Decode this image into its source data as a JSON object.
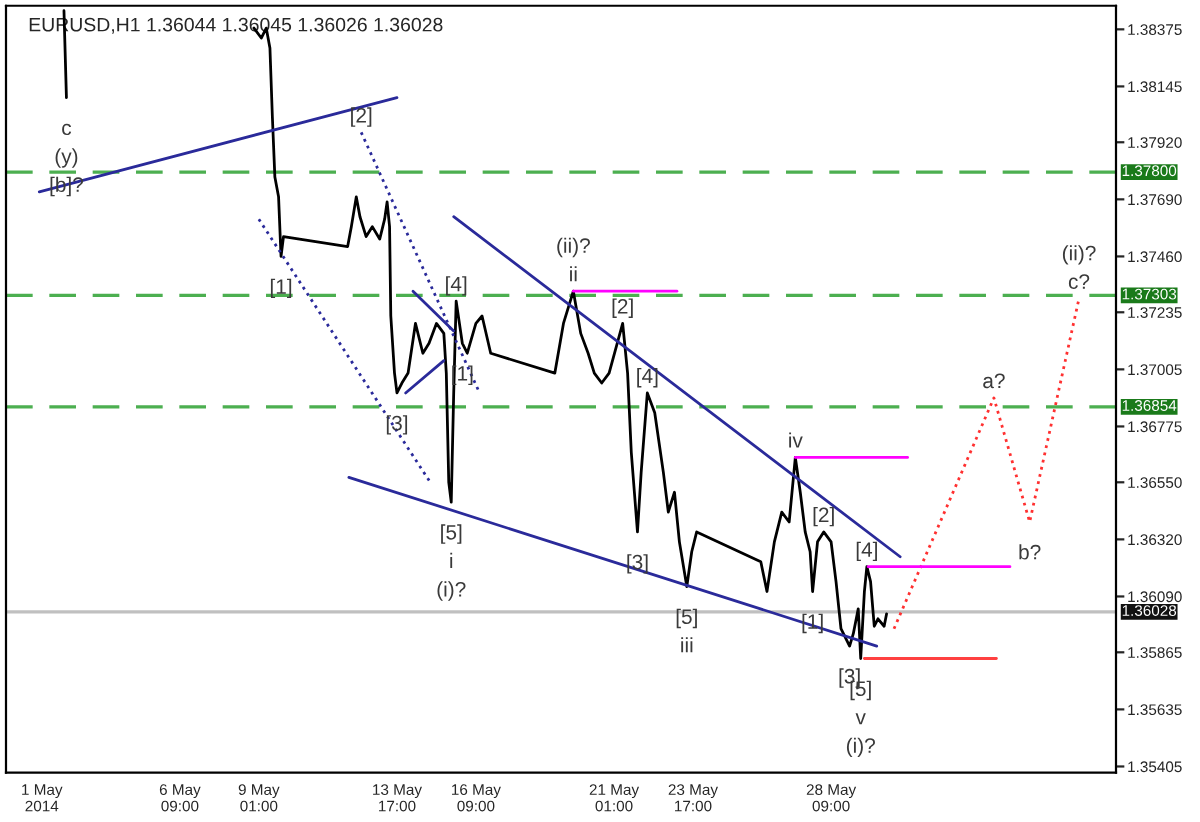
{
  "chart_data": {
    "type": "line",
    "title": "EURUSD,H1 1.36044 1.36045 1.36026 1.36028",
    "xlim": [
      "2014-04-30T12:00",
      "2014-06-07T00:00"
    ],
    "ylim": [
      1.3538,
      1.3847
    ],
    "xticks": [
      {
        "value": "2014-05-01T17:00",
        "label": "1 May 2014"
      },
      {
        "value": "2014-05-06T09:00",
        "label": "6 May 09:00"
      },
      {
        "value": "2014-05-09T01:00",
        "label": "9 May 01:00"
      },
      {
        "value": "2014-05-13T17:00",
        "label": "13 May 17:00"
      },
      {
        "value": "2014-05-16T09:00",
        "label": "16 May 09:00"
      },
      {
        "value": "2014-05-21T01:00",
        "label": "21 May 01:00"
      },
      {
        "value": "2014-05-23T17:00",
        "label": "23 May 17:00"
      },
      {
        "value": "2014-05-28T09:00",
        "label": "28 May 09:00"
      }
    ],
    "yticks": [
      {
        "value": 1.38375,
        "label": "1.38375"
      },
      {
        "value": 1.38145,
        "label": "1.38145"
      },
      {
        "value": 1.3792,
        "label": "1.37920"
      },
      {
        "value": 1.3769,
        "label": "1.37690"
      },
      {
        "value": 1.3746,
        "label": "1.37460"
      },
      {
        "value": 1.37235,
        "label": "1.37235"
      },
      {
        "value": 1.37005,
        "label": "1.37005"
      },
      {
        "value": 1.36775,
        "label": "1.36775"
      },
      {
        "value": 1.3655,
        "label": "1.36550"
      },
      {
        "value": 1.3632,
        "label": "1.36320"
      },
      {
        "value": 1.3609,
        "label": "1.36090"
      },
      {
        "value": 1.35865,
        "label": "1.35865"
      },
      {
        "value": 1.35635,
        "label": "1.35635"
      },
      {
        "value": 1.35405,
        "label": "1.35405"
      }
    ],
    "series": [
      {
        "color": "#000000",
        "line_style": "solid",
        "x": [
          "2014-05-02T11:00",
          "2014-05-02T13:00",
          "2014-05-06T17:00",
          "2014-05-08T21:00",
          "2014-05-09T03:00",
          "2014-05-09T07:00",
          "2014-05-09T10:00",
          "2014-05-09T12:00",
          "2014-05-09T14:00",
          "2014-05-09T17:00",
          "2014-05-09T19:00",
          "2014-05-09T21:00",
          "2014-05-12T01:00",
          "2014-05-12T04:00",
          "2014-05-12T08:00",
          "2014-05-12T11:00",
          "2014-05-12T16:00",
          "2014-05-12T21:00",
          "2014-05-13T03:00",
          "2014-05-13T07:00",
          "2014-05-13T09:00",
          "2014-05-13T11:00",
          "2014-05-13T12:00",
          "2014-05-13T15:00",
          "2014-05-13T17:00",
          "2014-05-13T21:00",
          "2014-05-14T02:00",
          "2014-05-14T08:00",
          "2014-05-14T14:00",
          "2014-05-14T19:00",
          "2014-05-15T01:00",
          "2014-05-15T07:00",
          "2014-05-15T09:00",
          "2014-05-15T11:00",
          "2014-05-15T13:00",
          "2014-05-15T15:00",
          "2014-05-15T17:00",
          "2014-05-15T22:00",
          "2014-05-16T02:00",
          "2014-05-16T09:00",
          "2014-05-16T14:00",
          "2014-05-16T21:00",
          "2014-05-19T01:00",
          "2014-05-19T08:00",
          "2014-05-19T16:00",
          "2014-05-19T22:00",
          "2014-05-20T04:00",
          "2014-05-20T09:00",
          "2014-05-20T15:00",
          "2014-05-20T21:00",
          "2014-05-21T08:00",
          "2014-05-21T12:00",
          "2014-05-21T15:00",
          "2014-05-21T20:00",
          "2014-05-21T23:00",
          "2014-05-22T04:00",
          "2014-05-22T10:00",
          "2014-05-22T17:00",
          "2014-05-22T21:00",
          "2014-05-23T02:00",
          "2014-05-23T06:00",
          "2014-05-23T12:00",
          "2014-05-23T16:00",
          "2014-05-23T20:00",
          "2014-05-26T00:00",
          "2014-05-26T05:00",
          "2014-05-26T11:00",
          "2014-05-26T17:00",
          "2014-05-26T23:00",
          "2014-05-27T04:00",
          "2014-05-27T08:00",
          "2014-05-27T12:00",
          "2014-05-27T16:00",
          "2014-05-27T18:00",
          "2014-05-27T22:00",
          "2014-05-28T03:00",
          "2014-05-28T09:00",
          "2014-05-28T13:00",
          "2014-05-28T17:00",
          "2014-05-28T21:00",
          "2014-05-29T00:00",
          "2014-05-29T03:00",
          "2014-05-29T07:00",
          "2014-05-29T09:00",
          "2014-05-29T12:00",
          "2014-05-29T14:00",
          "2014-05-29T17:00",
          "2014-05-29T20:00",
          "2014-05-29T23:00",
          "2014-05-30T04:00",
          "2014-05-30T06:00"
        ],
        "values": [
          1.3845,
          1.381,
          null,
          1.3838,
          1.3834,
          1.3838,
          1.383,
          1.3802,
          1.3778,
          1.377,
          1.3746,
          1.3754,
          1.375,
          1.3758,
          1.377,
          1.3762,
          1.3754,
          1.3758,
          1.3753,
          1.3761,
          1.3768,
          1.3758,
          1.3722,
          1.3699,
          1.3691,
          1.3695,
          1.3699,
          1.3719,
          1.3707,
          1.3711,
          1.3719,
          1.3715,
          1.3699,
          1.3655,
          1.3647,
          1.3691,
          1.3728,
          1.3711,
          1.3707,
          1.3719,
          1.3722,
          1.3707,
          1.3699,
          1.3719,
          1.3732,
          1.3715,
          1.3707,
          1.3699,
          1.3695,
          1.3699,
          1.3719,
          1.3699,
          1.3667,
          1.3635,
          1.3659,
          1.3691,
          1.3683,
          1.3659,
          1.3643,
          1.3651,
          1.3631,
          1.3613,
          1.3627,
          1.3635,
          1.3623,
          1.3611,
          1.3631,
          1.3643,
          1.3639,
          1.3665,
          1.3651,
          1.3635,
          1.3627,
          1.3611,
          1.3631,
          1.3635,
          1.3631,
          1.3615,
          1.3596,
          1.3592,
          1.3589,
          1.3594,
          1.3604,
          1.3584,
          1.3611,
          1.3621,
          1.3615,
          1.3597,
          1.36,
          1.3597,
          1.3602
        ]
      },
      {
        "color": "#ff3030",
        "line_style": "dotted",
        "x": [
          "2014-05-30T12:00",
          "2014-06-02T21:00",
          "2014-06-04T02:00",
          "2014-06-05T18:00"
        ],
        "values": [
          1.3596,
          1.3689,
          1.3639,
          1.3729
        ]
      },
      {
        "color": "#2a2a9a",
        "line_style": "solid",
        "x": [
          "2014-05-01T15:00",
          "2014-05-13T17:00"
        ],
        "values": [
          1.3772,
          1.381
        ]
      },
      {
        "color": "#2a2a9a",
        "line_style": "solid",
        "x": [
          "2014-05-12T02:00",
          "2014-05-29T22:00"
        ],
        "values": [
          1.3657,
          1.3589
        ]
      },
      {
        "color": "#2a2a9a",
        "line_style": "solid",
        "x": [
          "2014-05-15T15:00",
          "2014-05-30T17:00"
        ],
        "values": [
          1.3762,
          1.3625
        ]
      },
      {
        "color": "#2a2a9a",
        "line_style": "dotted",
        "x": [
          "2014-05-09T01:00",
          "2014-05-14T20:00"
        ],
        "values": [
          1.3761,
          1.3655
        ]
      },
      {
        "color": "#2a2a9a",
        "line_style": "dotted",
        "x": [
          "2014-05-12T12:00",
          "2014-05-16T12:00"
        ],
        "values": [
          1.3796,
          1.3691
        ]
      },
      {
        "color": "#2a2a9a",
        "line_style": "solid",
        "x": [
          "2014-05-14T06:00",
          "2014-05-15T15:00"
        ],
        "values": [
          1.3732,
          1.3716
        ]
      },
      {
        "color": "#2a2a9a",
        "line_style": "solid",
        "x": [
          "2014-05-14T00:00",
          "2014-05-15T07:00"
        ],
        "values": [
          1.3691,
          1.3704
        ]
      },
      {
        "color": "#ff00ff",
        "line_style": "solid",
        "x": [
          "2014-05-19T16:00",
          "2014-05-23T04:00"
        ],
        "values": [
          1.3732,
          1.3732
        ]
      },
      {
        "color": "#ff00ff",
        "line_style": "solid",
        "x": [
          "2014-05-27T04:00",
          "2014-05-30T23:00"
        ],
        "values": [
          1.3665,
          1.3665
        ]
      },
      {
        "color": "#ff00ff",
        "line_style": "solid",
        "x": [
          "2014-05-29T15:00",
          "2014-06-03T10:00"
        ],
        "values": [
          1.3621,
          1.3621
        ]
      },
      {
        "color": "#ff4040",
        "line_style": "solid",
        "x": [
          "2014-05-29T12:00",
          "2014-06-02T23:00"
        ],
        "values": [
          1.3584,
          1.3584
        ]
      }
    ],
    "ref_lines": [
      {
        "axis": "y",
        "value": 1.378,
        "label": "1.37800",
        "color": "#4caf50",
        "line_style": "dashed"
      },
      {
        "axis": "y",
        "value": 1.37303,
        "label": "1.37303",
        "color": "#4caf50",
        "line_style": "dashed"
      },
      {
        "axis": "y",
        "value": 1.36854,
        "label": "1.36854",
        "color": "#4caf50",
        "line_style": "dashed"
      },
      {
        "axis": "y",
        "value": 1.36028,
        "label": "1.36028",
        "color": "#c0c0c0",
        "line_style": "solid"
      }
    ],
    "annotations": [
      {
        "text": "c\n(y)\n[b]?",
        "x": "2014-05-02T13:00",
        "y": 1.381
      },
      {
        "text": "[2]",
        "x": "2014-05-12T12:00",
        "y": 1.3796
      },
      {
        "text": "[1]",
        "x": "2014-05-09T19:00",
        "y": 1.3746
      },
      {
        "text": "(ii)?\nii",
        "x": "2014-05-19T16:00",
        "y": 1.3732
      },
      {
        "text": "[4]",
        "x": "2014-05-15T17:00",
        "y": 1.3728
      },
      {
        "text": "[2]",
        "x": "2014-05-21T08:00",
        "y": 1.3719
      },
      {
        "text": "[3]",
        "x": "2014-05-13T17:00",
        "y": 1.3691
      },
      {
        "text": "[5]\ni\n(i)?",
        "x": "2014-05-15T13:00",
        "y": 1.3647
      },
      {
        "text": "[1]",
        "x": "2014-05-15T22:00",
        "y": 1.3711
      },
      {
        "text": "[4]",
        "x": "2014-05-22T04:00",
        "y": 1.3691
      },
      {
        "text": "[3]",
        "x": "2014-05-21T20:00",
        "y": 1.3635
      },
      {
        "text": "[5]\niii",
        "x": "2014-05-23T12:00",
        "y": 1.3613
      },
      {
        "text": "iv",
        "x": "2014-05-27T04:00",
        "y": 1.3665
      },
      {
        "text": "[2]",
        "x": "2014-05-28T03:00",
        "y": 1.3635
      },
      {
        "text": "[1]",
        "x": "2014-05-27T18:00",
        "y": 1.3611
      },
      {
        "text": "[4]",
        "x": "2014-05-29T14:00",
        "y": 1.3621
      },
      {
        "text": "[3]",
        "x": "2014-05-29T00:00",
        "y": 1.3589
      },
      {
        "text": "[5]\nv\n(i)?",
        "x": "2014-05-29T09:00",
        "y": 1.3584
      },
      {
        "text": "a?",
        "x": "2014-06-02T21:00",
        "y": 1.3689
      },
      {
        "text": "b?",
        "x": "2014-06-04T02:00",
        "y": 1.3639
      },
      {
        "text": "(ii)?\nc?",
        "x": "2014-06-05T18:00",
        "y": 1.3729
      }
    ]
  }
}
